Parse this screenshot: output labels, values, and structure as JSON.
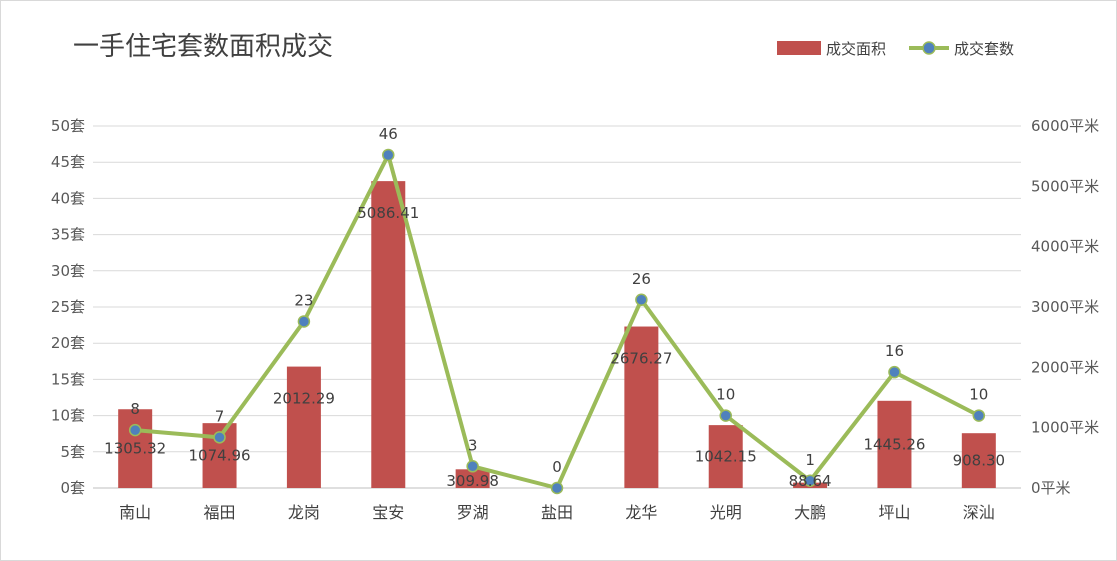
{
  "chart_data": {
    "type": "bar",
    "title": "一手住宅套数面积成交",
    "categories": [
      "南山",
      "福田",
      "龙岗",
      "宝安",
      "罗湖",
      "盐田",
      "龙华",
      "光明",
      "大鹏",
      "坪山",
      "深汕"
    ],
    "series": [
      {
        "name": "成交面积",
        "type": "bar",
        "axis": "right",
        "values": [
          1305.32,
          1074.96,
          2012.29,
          5086.41,
          309.98,
          0,
          2676.27,
          1042.15,
          88.64,
          1445.26,
          908.3
        ],
        "labels": [
          "1305.32",
          "1074.96",
          "2012.29",
          "5086.41",
          "309.98",
          "",
          "2676.27",
          "1042.15",
          "88.64",
          "1445.26",
          "908.30"
        ],
        "color": "#c0504d"
      },
      {
        "name": "成交套数",
        "type": "line",
        "axis": "left",
        "values": [
          8,
          7,
          23,
          46,
          3,
          0,
          26,
          10,
          1,
          16,
          10
        ],
        "labels": [
          "8",
          "7",
          "23",
          "46",
          "3",
          "0",
          "26",
          "10",
          "1",
          "16",
          "10"
        ],
        "color": "#9bbb59",
        "marker_color": "#4f81bd"
      }
    ],
    "y_left": {
      "ticks": [
        "0套",
        "5套",
        "10套",
        "15套",
        "20套",
        "25套",
        "30套",
        "35套",
        "40套",
        "45套",
        "50套"
      ],
      "ylim": [
        0,
        50
      ]
    },
    "y_right": {
      "ticks": [
        "0平米",
        "1000平米",
        "2000平米",
        "3000平米",
        "4000平米",
        "5000平米",
        "6000平米"
      ],
      "ylim": [
        0,
        6000
      ]
    },
    "grid": true,
    "legend_position": "top-right",
    "colors": {
      "gridline": "#d9d9d9",
      "axis": "#bfbfbf"
    }
  }
}
